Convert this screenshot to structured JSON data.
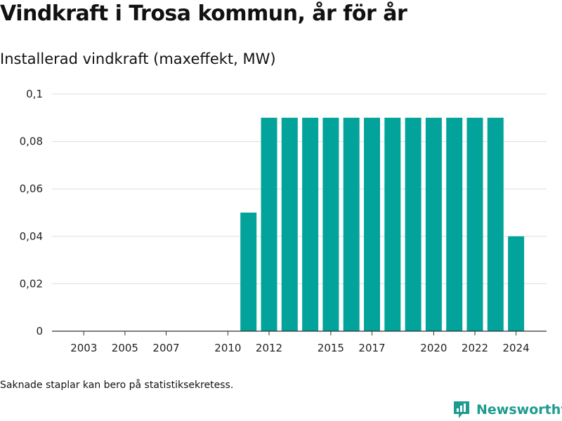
{
  "title": "Vindkraft i Trosa kommun, år för år",
  "subtitle": "Installerad vindkraft (maxeffekt, MW)",
  "note": "Saknade staplar kan bero på statistiksekretess.",
  "brand": {
    "name": "Newsworthy",
    "icon": "newsworthy-logo-icon",
    "color": "#1e9b90"
  },
  "colors": {
    "bar": "#02a39a",
    "grid": "#dddddd",
    "axis": "#333333"
  },
  "chart_data": {
    "type": "bar",
    "title": "Vindkraft i Trosa kommun, år för år",
    "subtitle": "Installerad vindkraft (maxeffekt, MW)",
    "xlabel": "",
    "ylabel": "",
    "ylim": [
      0,
      0.1
    ],
    "y_ticks": [
      0,
      0.02,
      0.04,
      0.06,
      0.08,
      0.1
    ],
    "y_tick_labels": [
      "0",
      "0,02",
      "0,04",
      "0,06",
      "0,08",
      "0,1"
    ],
    "x_tick_labels": [
      "2003",
      "2005",
      "2007",
      "2010",
      "2012",
      "2015",
      "2017",
      "2020",
      "2022",
      "2024"
    ],
    "grid": true,
    "legend": "none",
    "categories": [
      "2002",
      "2003",
      "2004",
      "2005",
      "2006",
      "2007",
      "2008",
      "2009",
      "2010",
      "2011",
      "2012",
      "2013",
      "2014",
      "2015",
      "2016",
      "2017",
      "2018",
      "2019",
      "2020",
      "2021",
      "2022",
      "2023",
      "2024"
    ],
    "values": [
      0,
      0,
      0,
      0,
      0,
      0,
      0,
      0,
      0,
      0.05,
      0.09,
      0.09,
      0.09,
      0.09,
      0.09,
      0.09,
      0.09,
      0.09,
      0.09,
      0.09,
      0.09,
      0.09,
      0.04
    ]
  }
}
